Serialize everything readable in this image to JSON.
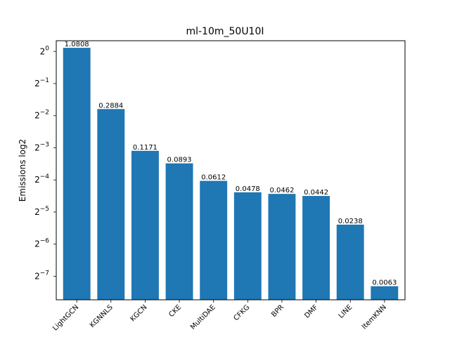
{
  "chart_data": {
    "type": "bar",
    "title": "ml-10m_50U10I",
    "xlabel": "",
    "ylabel": "Emissions log2",
    "yscale": "log2",
    "ylim": [
      0.0047,
      1.26
    ],
    "y_ticks": [
      {
        "value": 1,
        "base": "2",
        "exp": "0"
      },
      {
        "value": 0.5,
        "base": "2",
        "exp": "−1"
      },
      {
        "value": 0.25,
        "base": "2",
        "exp": "−2"
      },
      {
        "value": 0.125,
        "base": "2",
        "exp": "−3"
      },
      {
        "value": 0.0625,
        "base": "2",
        "exp": "−4"
      },
      {
        "value": 0.03125,
        "base": "2",
        "exp": "−5"
      },
      {
        "value": 0.015625,
        "base": "2",
        "exp": "−6"
      },
      {
        "value": 0.0078125,
        "base": "2",
        "exp": "−7"
      }
    ],
    "categories": [
      "LightGCN",
      "KGNNLS",
      "KGCN",
      "CKE",
      "MultiDAE",
      "CFKG",
      "BPR",
      "DMF",
      "LINE",
      "ItemKNN"
    ],
    "values": [
      1.0808,
      0.2884,
      0.1171,
      0.0893,
      0.0612,
      0.0478,
      0.0462,
      0.0442,
      0.0238,
      0.0063
    ],
    "value_labels": [
      "1.0808",
      "0.2884",
      "0.1171",
      "0.0893",
      "0.0612",
      "0.0478",
      "0.0462",
      "0.0442",
      "0.0238",
      "0.0063"
    ],
    "bar_color": "#1f77b4",
    "grid": false,
    "legend": "none"
  }
}
